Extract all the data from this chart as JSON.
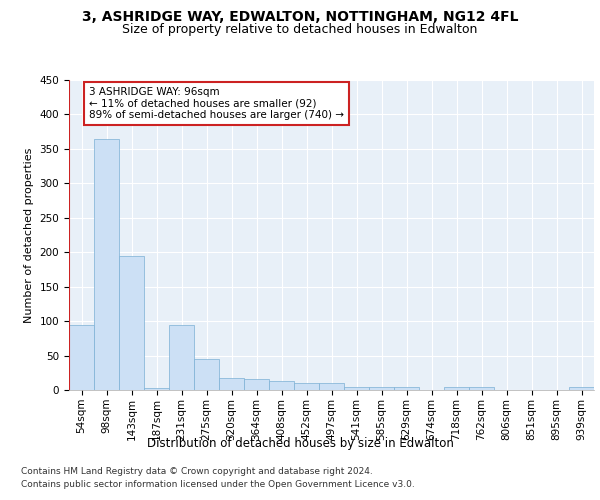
{
  "title_line1": "3, ASHRIDGE WAY, EDWALTON, NOTTINGHAM, NG12 4FL",
  "title_line2": "Size of property relative to detached houses in Edwalton",
  "xlabel": "Distribution of detached houses by size in Edwalton",
  "ylabel": "Number of detached properties",
  "footnote_line1": "Contains HM Land Registry data © Crown copyright and database right 2024.",
  "footnote_line2": "Contains public sector information licensed under the Open Government Licence v3.0.",
  "annotation_line1": "3 ASHRIDGE WAY: 96sqm",
  "annotation_line2": "← 11% of detached houses are smaller (92)",
  "annotation_line3": "89% of semi-detached houses are larger (740) →",
  "bar_color": "#cce0f5",
  "bar_edge_color": "#7bafd4",
  "highlight_color": "#cc2222",
  "categories": [
    "54sqm",
    "98sqm",
    "143sqm",
    "187sqm",
    "231sqm",
    "275sqm",
    "320sqm",
    "364sqm",
    "408sqm",
    "452sqm",
    "497sqm",
    "541sqm",
    "585sqm",
    "629sqm",
    "674sqm",
    "718sqm",
    "762sqm",
    "806sqm",
    "851sqm",
    "895sqm",
    "939sqm"
  ],
  "values": [
    95,
    365,
    195,
    3,
    95,
    45,
    18,
    16,
    13,
    10,
    10,
    4,
    4,
    4,
    0,
    4,
    4,
    0,
    0,
    0,
    4
  ],
  "ylim": [
    0,
    450
  ],
  "yticks": [
    0,
    50,
    100,
    150,
    200,
    250,
    300,
    350,
    400,
    450
  ],
  "background_color": "#e8f0f8",
  "grid_color": "#ffffff",
  "title_fontsize": 10,
  "subtitle_fontsize": 9,
  "tick_fontsize": 7.5,
  "ylabel_fontsize": 8,
  "xlabel_fontsize": 8.5,
  "footnote_fontsize": 6.5,
  "annotation_fontsize": 7.5
}
